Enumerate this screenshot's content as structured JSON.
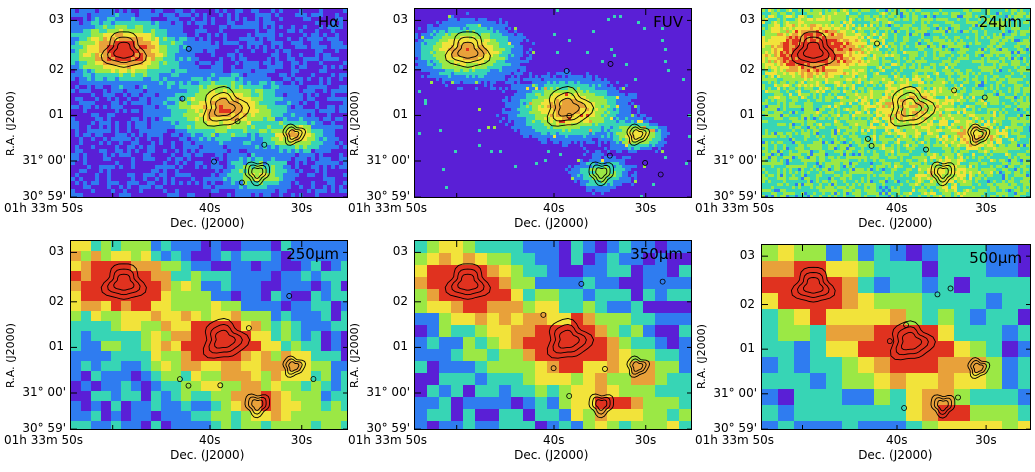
{
  "figure": {
    "panels": [
      {
        "label": "Hα",
        "style": "halpha"
      },
      {
        "label": "FUV",
        "style": "fuv"
      },
      {
        "label": "24μm",
        "style": "mir"
      },
      {
        "label": "250μm",
        "style": "fir1"
      },
      {
        "label": "350μm",
        "style": "fir2"
      },
      {
        "label": "500μm",
        "style": "fir3"
      }
    ],
    "y_axis_label": "R.A. (J2000)",
    "x_axis_label": "Dec. (J2000)",
    "y_ticks": [
      "03",
      "02",
      "01",
      "31° 00'",
      "30° 59'"
    ],
    "x_ticks": [
      "01h 33m 50s",
      "40s",
      "30s"
    ],
    "colormap": [
      "#5a1fd6",
      "#2f7cf0",
      "#37d5b5",
      "#9be845",
      "#f2e33a",
      "#e8a13a",
      "#e0321f"
    ]
  }
}
